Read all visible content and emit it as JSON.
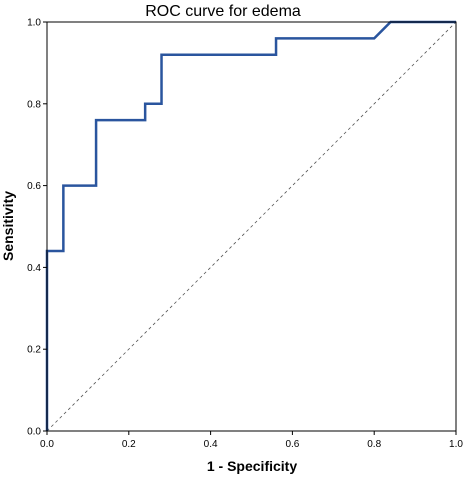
{
  "chart_data": {
    "type": "line",
    "title": "ROC curve for edema",
    "xlabel": "1 - Specificity",
    "ylabel": "Sensitivity",
    "xlim": [
      0,
      1
    ],
    "ylim": [
      0,
      1
    ],
    "x_ticks": [
      "0.0",
      "0.2",
      "0.4",
      "0.6",
      "0.8",
      "1.0"
    ],
    "y_ticks": [
      "0.0",
      "0.2",
      "0.4",
      "0.6",
      "0.8",
      "1.0"
    ],
    "grid": false,
    "legend": "none",
    "series": [
      {
        "color": "#2a559e",
        "x": [
          0,
          0,
          0.04,
          0.04,
          0.12,
          0.12,
          0.24,
          0.24,
          0.28,
          0.28,
          0.56,
          0.56,
          0.8,
          0.84,
          1.0
        ],
        "y": [
          0,
          0.44,
          0.44,
          0.6,
          0.6,
          0.76,
          0.76,
          0.8,
          0.8,
          0.92,
          0.92,
          0.96,
          0.96,
          1.0,
          1.0
        ]
      }
    ],
    "reference_line": {
      "x": [
        0,
        1
      ],
      "y": [
        0,
        1
      ],
      "color": "#555555",
      "style": "dashed"
    }
  }
}
